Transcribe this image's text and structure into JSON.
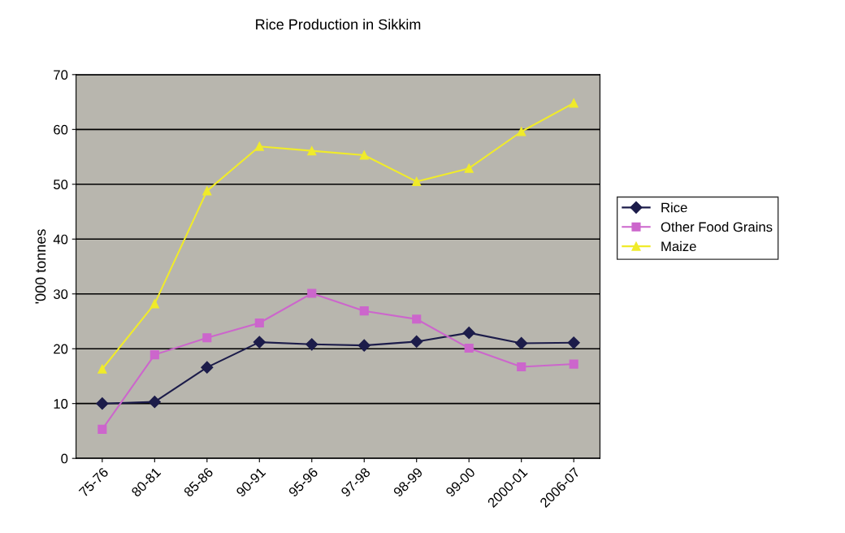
{
  "chart_data": {
    "type": "line",
    "title": "Rice Production in Sikkim",
    "ylabel": "'000 tonnes",
    "categories": [
      "75-76",
      "80-81",
      "85-86",
      "90-91",
      "95-96",
      "97-98",
      "98-99",
      "99-00",
      "2000-01",
      "2006-07"
    ],
    "series": [
      {
        "name": "Rice",
        "color": "#1c1c4a",
        "marker": "diamond",
        "values": [
          10,
          10.3,
          16.6,
          21.2,
          20.8,
          20.6,
          21.3,
          22.9,
          21,
          21.1
        ]
      },
      {
        "name": "Other Food Grains",
        "color": "#cc66cc",
        "marker": "square",
        "values": [
          5.3,
          18.9,
          22,
          24.7,
          30.1,
          26.9,
          25.4,
          20.1,
          16.7,
          17.2
        ]
      },
      {
        "name": "Maize",
        "color": "#f0eb2a",
        "marker": "triangle",
        "values": [
          16.3,
          28.2,
          48.8,
          56.9,
          56.1,
          55.3,
          50.5,
          52.9,
          59.6,
          64.8
        ]
      }
    ],
    "ylim": [
      0,
      70
    ],
    "yticks": [
      0,
      10,
      20,
      30,
      40,
      50,
      60,
      70
    ],
    "grid": "y",
    "legend": "right"
  }
}
